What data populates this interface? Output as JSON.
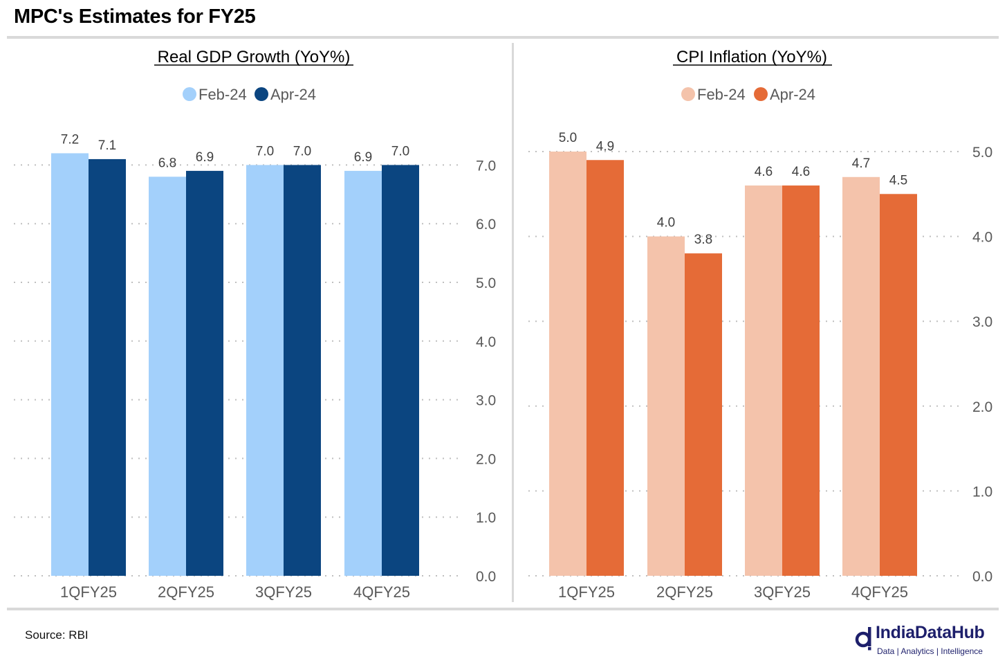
{
  "page": {
    "title": "MPC's Estimates for FY25",
    "source": "Source: RBI"
  },
  "brand": {
    "name": "IndiaDataHub",
    "tagline": "Data | Analytics | Intelligence",
    "color": "#1d1f6b"
  },
  "chart_data": [
    {
      "type": "bar",
      "title": "Real GDP Growth (YoY%)",
      "categories": [
        "1QFY25",
        "2QFY25",
        "3QFY25",
        "4QFY25"
      ],
      "series": [
        {
          "name": "Feb-24",
          "values": [
            7.2,
            6.8,
            7.0,
            6.9
          ],
          "labels": [
            "7.2",
            "6.8",
            "7.0",
            "6.9"
          ],
          "color": "#a3d0fb"
        },
        {
          "name": "Apr-24",
          "values": [
            7.1,
            6.9,
            7.0,
            7.0
          ],
          "labels": [
            "7.1",
            "6.9",
            "7.0",
            "7.0"
          ],
          "color": "#0b4580"
        }
      ],
      "ylim": [
        0,
        7
      ],
      "yticks": [
        0,
        1,
        2,
        3,
        4,
        5,
        6,
        7
      ],
      "ytick_labels": [
        "0.0",
        "1.0",
        "2.0",
        "3.0",
        "4.0",
        "5.0",
        "6.0",
        "7.0"
      ],
      "y_axis_side": "right",
      "grid": "dotted horizontal",
      "legend": "top-center"
    },
    {
      "type": "bar",
      "title": "CPI Inflation (YoY%)",
      "categories": [
        "1QFY25",
        "2QFY25",
        "3QFY25",
        "4QFY25"
      ],
      "series": [
        {
          "name": "Feb-24",
          "values": [
            5.0,
            4.0,
            4.6,
            4.7
          ],
          "labels": [
            "5.0",
            "4.0",
            "4.6",
            "4.7"
          ],
          "color": "#f4c3ab"
        },
        {
          "name": "Apr-24",
          "values": [
            4.9,
            3.8,
            4.6,
            4.5
          ],
          "labels": [
            "4.9",
            "3.8",
            "4.6",
            "4.5"
          ],
          "color": "#e56b37"
        }
      ],
      "ylim": [
        0,
        5
      ],
      "yticks": [
        0,
        1,
        2,
        3,
        4,
        5
      ],
      "ytick_labels": [
        "0.0",
        "1.0",
        "2.0",
        "3.0",
        "4.0",
        "5.0"
      ],
      "y_axis_side": "right",
      "grid": "dotted horizontal",
      "legend": "top-center"
    }
  ]
}
